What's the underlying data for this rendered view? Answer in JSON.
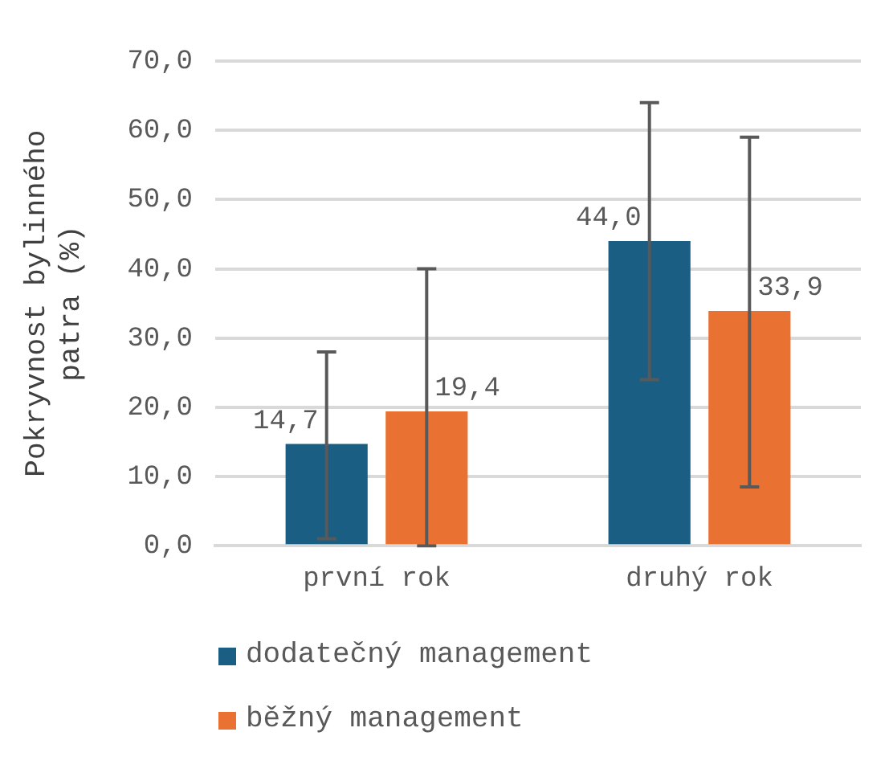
{
  "chart_data": {
    "type": "bar",
    "ylabel": "Pokryvnost bylinného patra (%)",
    "categories": [
      "první rok",
      "druhý rok"
    ],
    "series": [
      {
        "name": "dodatečný management",
        "color": "#1b5e83",
        "values": [
          14.7,
          44.0
        ],
        "errors": [
          [
            1,
            28
          ],
          [
            24,
            64
          ]
        ],
        "value_labels": [
          "14,7",
          "44,0"
        ]
      },
      {
        "name": "běžný management",
        "color": "#e97132",
        "values": [
          19.4,
          33.9
        ],
        "errors": [
          [
            0,
            40
          ],
          [
            8.5,
            59
          ]
        ],
        "value_labels": [
          "19,4",
          "33,9"
        ]
      }
    ],
    "ylim": [
      0,
      70
    ],
    "yticks": [
      {
        "value": 0,
        "label": "0,0"
      },
      {
        "value": 10,
        "label": "10,0"
      },
      {
        "value": 20,
        "label": "20,0"
      },
      {
        "value": 30,
        "label": "30,0"
      },
      {
        "value": 40,
        "label": "40,0"
      },
      {
        "value": 50,
        "label": "50,0"
      },
      {
        "value": 60,
        "label": "60,0"
      },
      {
        "value": 70,
        "label": "70,0"
      }
    ],
    "grid": "y",
    "legend": "bottom"
  }
}
